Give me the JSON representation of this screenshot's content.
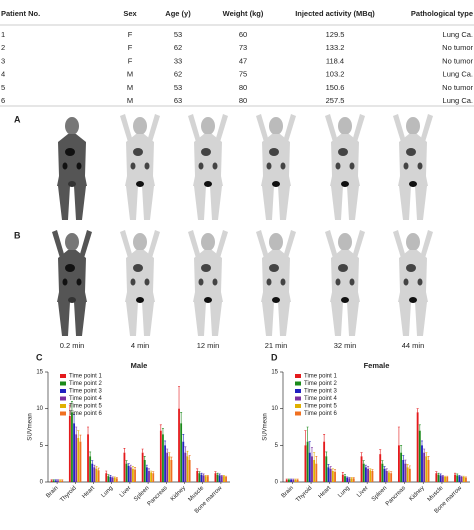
{
  "table": {
    "headers": [
      "Patient No.",
      "Sex",
      "Age (y)",
      "Weight (kg)",
      "Injected activity (MBq)",
      "Pathological type"
    ],
    "rows": [
      [
        "1",
        "F",
        "53",
        "60",
        "129.5",
        "Lung Ca."
      ],
      [
        "2",
        "F",
        "62",
        "73",
        "133.2",
        "No tumor"
      ],
      [
        "3",
        "F",
        "33",
        "47",
        "118.4",
        "No tumor"
      ],
      [
        "4",
        "M",
        "62",
        "75",
        "103.2",
        "Lung Ca."
      ],
      [
        "5",
        "M",
        "53",
        "80",
        "150.6",
        "No tumor"
      ],
      [
        "6",
        "M",
        "63",
        "80",
        "257.5",
        "Lung Ca."
      ]
    ]
  },
  "figure": {
    "panel_labels": [
      "A",
      "B"
    ],
    "times": [
      "0.2 min",
      "4 min",
      "12 min",
      "21 min",
      "32 min",
      "44 min"
    ]
  },
  "chart_data": [
    {
      "type": "bar",
      "label": "C",
      "title": "Male",
      "ylabel": "SUVmean",
      "categories": [
        "Brain",
        "Thyroid",
        "Heart",
        "Lung",
        "Liver",
        "Spleen",
        "Pancreas",
        "Kidney",
        "Muscle",
        "Bone marrow"
      ],
      "ylim": [
        0,
        15
      ],
      "yticks": [
        0,
        5,
        10,
        15
      ],
      "legend": "upper left",
      "series": [
        {
          "name": "Time point 1",
          "color": "#e41a1c",
          "values": [
            0.2,
            9,
            6.5,
            1.2,
            4,
            4,
            7,
            10,
            1.5,
            1.2
          ],
          "errors": [
            0.1,
            1.5,
            1,
            0.3,
            0.6,
            0.5,
            0.8,
            3,
            0.3,
            0.2
          ]
        },
        {
          "name": "Time point 2",
          "color": "#1a8a1a",
          "values": [
            0.2,
            9.5,
            3.5,
            0.8,
            2.5,
            3,
            6.5,
            8,
            1.2,
            1
          ],
          "errors": [
            0.1,
            1.5,
            0.6,
            0.2,
            0.4,
            0.5,
            0.8,
            1.5,
            0.2,
            0.2
          ]
        },
        {
          "name": "Time point 3",
          "color": "#2020c0",
          "values": [
            0.2,
            8,
            2.5,
            0.7,
            2.2,
            2,
            5,
            5.5,
            1,
            0.9
          ],
          "errors": [
            0.1,
            1.2,
            0.4,
            0.2,
            0.3,
            0.3,
            0.6,
            1,
            0.2,
            0.2
          ]
        },
        {
          "name": "Time point 4",
          "color": "#7b2fa0",
          "values": [
            0.2,
            6.5,
            2,
            0.6,
            2,
            1.5,
            4,
            4,
            0.9,
            0.8
          ],
          "errors": [
            0.1,
            1,
            0.3,
            0.1,
            0.3,
            0.3,
            0.5,
            0.8,
            0.2,
            0.1
          ]
        },
        {
          "name": "Time point 5",
          "color": "#e0b000",
          "values": [
            0.2,
            6,
            1.8,
            0.6,
            1.8,
            1.3,
            3.5,
            3.5,
            0.8,
            0.8
          ],
          "errors": [
            0.1,
            1,
            0.3,
            0.1,
            0.3,
            0.2,
            0.5,
            0.7,
            0.1,
            0.1
          ]
        },
        {
          "name": "Time point 6",
          "color": "#f07020",
          "values": [
            0.2,
            5.5,
            1.6,
            0.5,
            1.7,
            1.2,
            3,
            3,
            0.8,
            0.7
          ],
          "errors": [
            0.1,
            0.9,
            0.3,
            0.1,
            0.3,
            0.2,
            0.4,
            0.6,
            0.1,
            0.1
          ]
        }
      ]
    },
    {
      "type": "bar",
      "label": "D",
      "title": "Female",
      "ylabel": "SUVmean",
      "categories": [
        "Brain",
        "Thyroid",
        "Heart",
        "Lung",
        "Liver",
        "Spleen",
        "Pancreas",
        "Kidney",
        "Muscle",
        "Bone marrow"
      ],
      "ylim": [
        0,
        15
      ],
      "yticks": [
        0,
        5,
        10,
        15
      ],
      "legend": "upper left",
      "series": [
        {
          "name": "Time point 1",
          "color": "#e41a1c",
          "values": [
            0.3,
            5,
            5.5,
            1,
            3.5,
            3.8,
            5,
            9.5,
            1.2,
            1
          ],
          "errors": [
            0.1,
            2,
            1,
            0.3,
            0.5,
            0.6,
            2.5,
            0.5,
            0.2,
            0.2
          ]
        },
        {
          "name": "Time point 2",
          "color": "#1a8a1a",
          "values": [
            0.3,
            5.5,
            3.5,
            0.8,
            2.5,
            2.5,
            4,
            7,
            1,
            0.9
          ],
          "errors": [
            0.1,
            2,
            0.6,
            0.2,
            0.4,
            0.4,
            1,
            0.8,
            0.2,
            0.2
          ]
        },
        {
          "name": "Time point 3",
          "color": "#2020c0",
          "values": [
            0.3,
            4,
            2,
            0.6,
            2,
            1.8,
            3,
            5,
            0.9,
            0.8
          ],
          "errors": [
            0.1,
            1.5,
            0.4,
            0.1,
            0.3,
            0.3,
            0.6,
            0.6,
            0.2,
            0.1
          ]
        },
        {
          "name": "Time point 4",
          "color": "#7b2fa0",
          "values": [
            0.3,
            3.5,
            1.8,
            0.5,
            1.8,
            1.5,
            2.5,
            4,
            0.8,
            0.7
          ],
          "errors": [
            0.1,
            1.2,
            0.3,
            0.1,
            0.3,
            0.3,
            0.5,
            0.5,
            0.1,
            0.1
          ]
        },
        {
          "name": "Time point 5",
          "color": "#e0b000",
          "values": [
            0.3,
            3,
            1.5,
            0.5,
            1.6,
            1.3,
            2,
            3.5,
            0.7,
            0.7
          ],
          "errors": [
            0.1,
            1,
            0.3,
            0.1,
            0.2,
            0.2,
            0.4,
            0.5,
            0.1,
            0.1
          ]
        },
        {
          "name": "Time point 6",
          "color": "#f07020",
          "values": [
            0.3,
            2.5,
            1.4,
            0.5,
            1.5,
            1.2,
            1.8,
            3,
            0.7,
            0.6
          ],
          "errors": [
            0.1,
            1,
            0.3,
            0.1,
            0.2,
            0.2,
            0.4,
            0.5,
            0.1,
            0.1
          ]
        }
      ]
    }
  ]
}
